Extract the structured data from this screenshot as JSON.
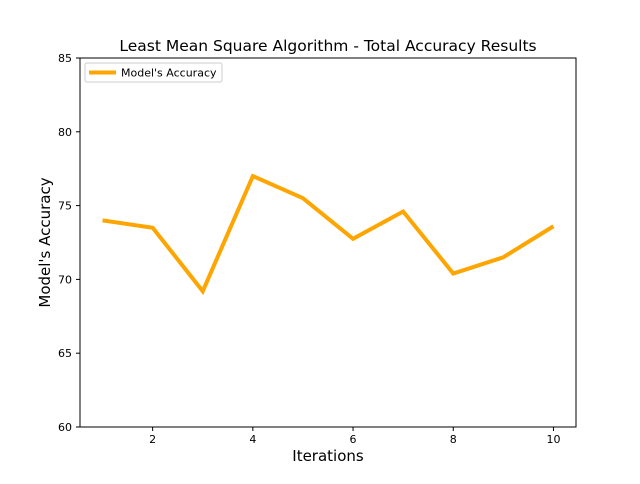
{
  "chart_data": {
    "type": "line",
    "title": "Least Mean Square Algorithm - Total Accuracy Results",
    "xlabel": "Iterations",
    "ylabel": "Model's Accuracy",
    "xlim": [
      0.55,
      10.45
    ],
    "ylim": [
      60,
      85
    ],
    "xticks": [
      2,
      4,
      6,
      8,
      10
    ],
    "yticks": [
      60,
      65,
      70,
      75,
      80,
      85
    ],
    "grid": false,
    "legend_position": "top-left",
    "series": [
      {
        "name": "Model's Accuracy",
        "color": "#FFA500",
        "x": [
          1,
          2,
          3,
          4,
          5,
          6,
          7,
          8,
          9,
          10
        ],
        "y": [
          74.0,
          73.5,
          69.2,
          77.0,
          75.5,
          72.75,
          74.6,
          70.4,
          71.5,
          73.6
        ]
      }
    ]
  }
}
